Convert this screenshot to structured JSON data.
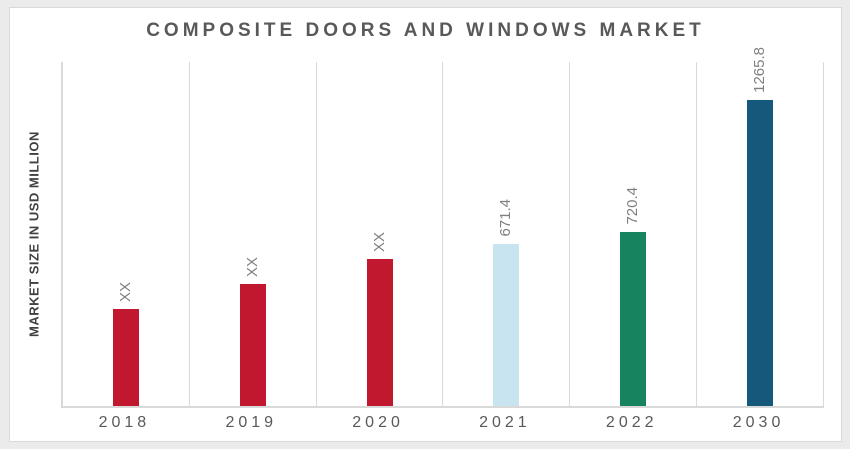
{
  "chart_data": {
    "type": "bar",
    "title": "COMPOSITE DOORS AND WINDOWS MARKET",
    "ylabel": "MARKET SIZE IN USD MILLION",
    "xlabel": "",
    "categories": [
      "2018",
      "2019",
      "2020",
      "2021",
      "2022",
      "2030"
    ],
    "values_display": [
      "XX",
      "XX",
      "XX",
      "671.4",
      "720.4",
      "1265.8"
    ],
    "values_estimated_from_bar_heights": [
      400,
      505,
      610,
      671.4,
      720.4,
      1265.8
    ],
    "bar_colors": [
      "#c2182f",
      "#c2182f",
      "#c2182f",
      "#c9e4f1",
      "#18845f",
      "#15587b"
    ],
    "ylim": [
      0,
      1425
    ],
    "grid": "vertical-category-separators",
    "legend": "none",
    "data_label_rotation_deg": -90
  },
  "colors": {
    "page_background": "#ebebeb",
    "canvas_background": "#ffffff",
    "border_and_gridlines": "#d9d9d9",
    "title_text": "#595959",
    "axis_title_text": "#404040",
    "tick_label_text": "#595959",
    "data_label_text": "#7f7f7f",
    "bar_red": "#c2182f",
    "bar_light_blue": "#c9e4f1",
    "bar_green": "#18845f",
    "bar_dark_blue": "#15587b"
  }
}
